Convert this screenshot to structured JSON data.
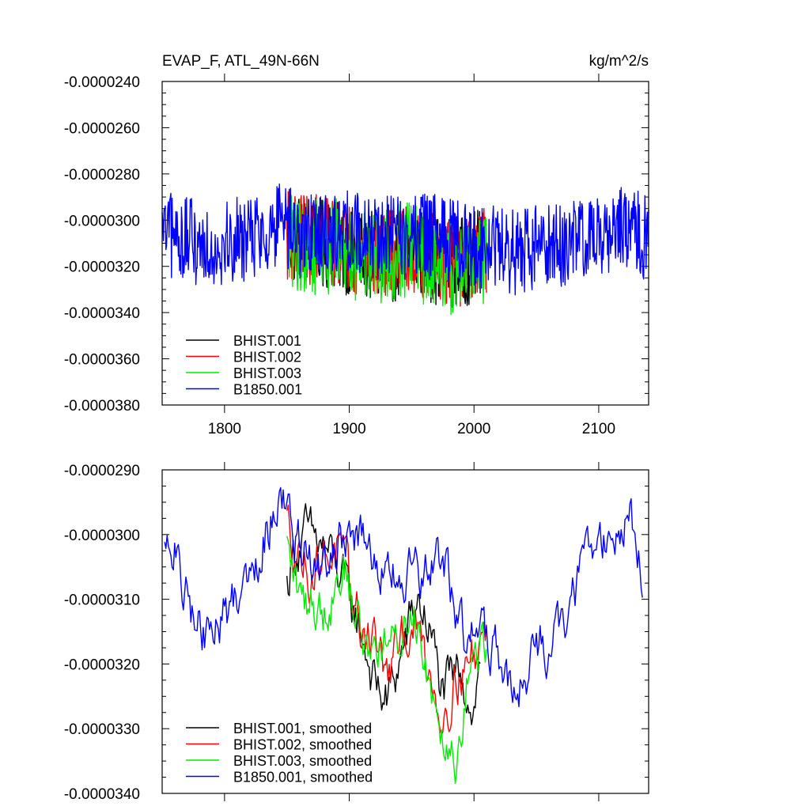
{
  "chart_data": [
    {
      "type": "line",
      "title": "EVAP_F, ATL_49N-66N",
      "units": "kg/m^2/s",
      "xlim": [
        1750,
        2140
      ],
      "ylim": [
        -3.8e-05,
        -2.4e-05
      ],
      "x_ticks": [
        1800,
        1900,
        2000,
        2100
      ],
      "x_tick_labels": [
        "1800",
        "1900",
        "2000",
        "2100"
      ],
      "y_ticks": [
        -2.4e-05,
        -2.6e-05,
        -2.8e-05,
        -3e-05,
        -3.2e-05,
        -3.4e-05,
        -3.6e-05,
        -3.8e-05
      ],
      "y_tick_labels": [
        "-0.0000240",
        "-0.0000260",
        "-0.0000280",
        "-0.0000300",
        "-0.0000320",
        "-0.0000340",
        "-0.0000360",
        "-0.0000380"
      ],
      "legend_position": "bottom-left",
      "series": [
        {
          "name": "BHIST.001",
          "color": "#000000",
          "x_start": 1850,
          "x_end": 2005,
          "mean": -3.12e-05,
          "amp": 1.8e-06,
          "anchors": [
            [
              1850,
              -3e-05
            ],
            [
              1870,
              -3.05e-05
            ],
            [
              1890,
              -3.1e-05
            ],
            [
              1910,
              -3.2e-05
            ],
            [
              1930,
              -3.25e-05
            ],
            [
              1950,
              -3.12e-05
            ],
            [
              1970,
              -3.25e-05
            ],
            [
              1990,
              -3.28e-05
            ],
            [
              2005,
              -3.18e-05
            ]
          ]
        },
        {
          "name": "BHIST.002",
          "color": "#ff0000",
          "x_start": 1850,
          "x_end": 2010,
          "mean": -3.12e-05,
          "amp": 1.8e-06,
          "anchors": [
            [
              1850,
              -2.98e-05
            ],
            [
              1870,
              -3.03e-05
            ],
            [
              1890,
              -3.05e-05
            ],
            [
              1910,
              -3.15e-05
            ],
            [
              1930,
              -3.2e-05
            ],
            [
              1950,
              -3.15e-05
            ],
            [
              1970,
              -3.2e-05
            ],
            [
              1985,
              -3.28e-05
            ],
            [
              2010,
              -3.18e-05
            ]
          ]
        },
        {
          "name": "BHIST.003",
          "color": "#00ee00",
          "x_start": 1850,
          "x_end": 2010,
          "mean": -3.13e-05,
          "amp": 1.9e-06,
          "anchors": [
            [
              1850,
              -3.02e-05
            ],
            [
              1870,
              -3.1e-05
            ],
            [
              1890,
              -3.08e-05
            ],
            [
              1910,
              -3.18e-05
            ],
            [
              1930,
              -3.18e-05
            ],
            [
              1950,
              -3.12e-05
            ],
            [
              1970,
              -3.28e-05
            ],
            [
              1985,
              -3.32e-05
            ],
            [
              2010,
              -3.18e-05
            ]
          ]
        },
        {
          "name": "B1850.001",
          "color": "#0000ff",
          "x_start": 1750,
          "x_end": 2140,
          "mean": -3.08e-05,
          "amp": 1.7e-06,
          "anchors": [
            [
              1750,
              -3.03e-05
            ],
            [
              1770,
              -3.1e-05
            ],
            [
              1790,
              -3.15e-05
            ],
            [
              1810,
              -3.1e-05
            ],
            [
              1830,
              -3.02e-05
            ],
            [
              1845,
              -2.94e-05
            ],
            [
              1860,
              -3.05e-05
            ],
            [
              1880,
              -3.03e-05
            ],
            [
              1900,
              -3.02e-05
            ],
            [
              1920,
              -3.05e-05
            ],
            [
              1940,
              -3.07e-05
            ],
            [
              1960,
              -3.06e-05
            ],
            [
              1980,
              -3.08e-05
            ],
            [
              2000,
              -3.15e-05
            ],
            [
              2020,
              -3.18e-05
            ],
            [
              2035,
              -3.25e-05
            ],
            [
              2050,
              -3.18e-05
            ],
            [
              2070,
              -3.15e-05
            ],
            [
              2090,
              -3.03e-05
            ],
            [
              2110,
              -3e-05
            ],
            [
              2125,
              -2.98e-05
            ],
            [
              2140,
              -3.08e-05
            ]
          ]
        }
      ]
    },
    {
      "type": "line",
      "xlim": [
        1750,
        2140
      ],
      "ylim": [
        -3.4e-05,
        -2.9e-05
      ],
      "x_ticks": [
        1800,
        1900,
        2000,
        2100
      ],
      "y_ticks": [
        -2.9e-05,
        -3e-05,
        -3.1e-05,
        -3.2e-05,
        -3.3e-05,
        -3.4e-05
      ],
      "y_tick_labels": [
        "-0.0000290",
        "-0.0000300",
        "-0.0000310",
        "-0.0000320",
        "-0.0000330",
        "-0.0000340"
      ],
      "legend_position": "bottom-left",
      "series": [
        {
          "name": "BHIST.001, smoothed",
          "color": "#000000",
          "x_start": 1850,
          "x_end": 2005,
          "amp": 4e-07,
          "anchors": [
            [
              1850,
              -3.08e-05
            ],
            [
              1855,
              -3.03e-05
            ],
            [
              1865,
              -3e-05
            ],
            [
              1880,
              -3.02e-05
            ],
            [
              1890,
              -3.05e-05
            ],
            [
              1900,
              -3.1e-05
            ],
            [
              1910,
              -3.15e-05
            ],
            [
              1920,
              -3.23e-05
            ],
            [
              1930,
              -3.26e-05
            ],
            [
              1940,
              -3.2e-05
            ],
            [
              1950,
              -3.13e-05
            ],
            [
              1955,
              -3.1e-05
            ],
            [
              1965,
              -3.15e-05
            ],
            [
              1975,
              -3.25e-05
            ],
            [
              1985,
              -3.22e-05
            ],
            [
              1990,
              -3.2e-05
            ],
            [
              1995,
              -3.25e-05
            ],
            [
              2000,
              -3.27e-05
            ],
            [
              2005,
              -3.2e-05
            ]
          ]
        },
        {
          "name": "BHIST.002, smoothed",
          "color": "#ff0000",
          "x_start": 1850,
          "x_end": 2010,
          "amp": 4e-07,
          "anchors": [
            [
              1850,
              -2.98e-05
            ],
            [
              1860,
              -3.03e-05
            ],
            [
              1870,
              -3.06e-05
            ],
            [
              1880,
              -3.03e-05
            ],
            [
              1890,
              -3.02e-05
            ],
            [
              1900,
              -3.08e-05
            ],
            [
              1910,
              -3.15e-05
            ],
            [
              1920,
              -3.15e-05
            ],
            [
              1930,
              -3.22e-05
            ],
            [
              1940,
              -3.18e-05
            ],
            [
              1950,
              -3.13e-05
            ],
            [
              1960,
              -3.18e-05
            ],
            [
              1975,
              -3.28e-05
            ],
            [
              1985,
              -3.22e-05
            ],
            [
              1995,
              -3.2e-05
            ],
            [
              2010,
              -3.15e-05
            ]
          ]
        },
        {
          "name": "BHIST.003, smoothed",
          "color": "#00ee00",
          "x_start": 1850,
          "x_end": 2010,
          "amp": 4e-07,
          "anchors": [
            [
              1850,
              -3.02e-05
            ],
            [
              1860,
              -3.1e-05
            ],
            [
              1870,
              -3.1e-05
            ],
            [
              1880,
              -3.12e-05
            ],
            [
              1890,
              -3.07e-05
            ],
            [
              1895,
              -3.04e-05
            ],
            [
              1905,
              -3.12e-05
            ],
            [
              1915,
              -3.18e-05
            ],
            [
              1925,
              -3.16e-05
            ],
            [
              1935,
              -3.18e-05
            ],
            [
              1945,
              -3.14e-05
            ],
            [
              1952,
              -3.11e-05
            ],
            [
              1962,
              -3.2e-05
            ],
            [
              1972,
              -3.28e-05
            ],
            [
              1985,
              -3.34e-05
            ],
            [
              1995,
              -3.22e-05
            ],
            [
              2010,
              -3.16e-05
            ]
          ]
        },
        {
          "name": "B1850.001, smoothed",
          "color": "#0000ff",
          "x_start": 1752,
          "x_end": 2135,
          "amp": 4e-07,
          "anchors": [
            [
              1752,
              -3.03e-05
            ],
            [
              1760,
              -3.02e-05
            ],
            [
              1765,
              -3.08e-05
            ],
            [
              1775,
              -3.12e-05
            ],
            [
              1785,
              -3.16e-05
            ],
            [
              1795,
              -3.14e-05
            ],
            [
              1805,
              -3.11e-05
            ],
            [
              1815,
              -3.07e-05
            ],
            [
              1825,
              -3.03e-05
            ],
            [
              1835,
              -2.99e-05
            ],
            [
              1845,
              -2.91e-05
            ],
            [
              1855,
              -3e-05
            ],
            [
              1865,
              -3.04e-05
            ],
            [
              1880,
              -3.06e-05
            ],
            [
              1890,
              -3.03e-05
            ],
            [
              1900,
              -2.98e-05
            ],
            [
              1910,
              -3.02e-05
            ],
            [
              1925,
              -3.06e-05
            ],
            [
              1940,
              -3.07e-05
            ],
            [
              1955,
              -3.07e-05
            ],
            [
              1965,
              -3.06e-05
            ],
            [
              1975,
              -3.04e-05
            ],
            [
              1985,
              -3.11e-05
            ],
            [
              1995,
              -3.16e-05
            ],
            [
              2005,
              -3.16e-05
            ],
            [
              2015,
              -3.18e-05
            ],
            [
              2025,
              -3.21e-05
            ],
            [
              2035,
              -3.26e-05
            ],
            [
              2045,
              -3.2e-05
            ],
            [
              2055,
              -3.17e-05
            ],
            [
              2065,
              -3.16e-05
            ],
            [
              2075,
              -3.14e-05
            ],
            [
              2085,
              -3.05e-05
            ],
            [
              2095,
              -3.02e-05
            ],
            [
              2105,
              -2.99e-05
            ],
            [
              2115,
              -3.01e-05
            ],
            [
              2125,
              -2.96e-05
            ],
            [
              2130,
              -3.01e-05
            ],
            [
              2135,
              -3.08e-05
            ]
          ]
        }
      ]
    }
  ]
}
